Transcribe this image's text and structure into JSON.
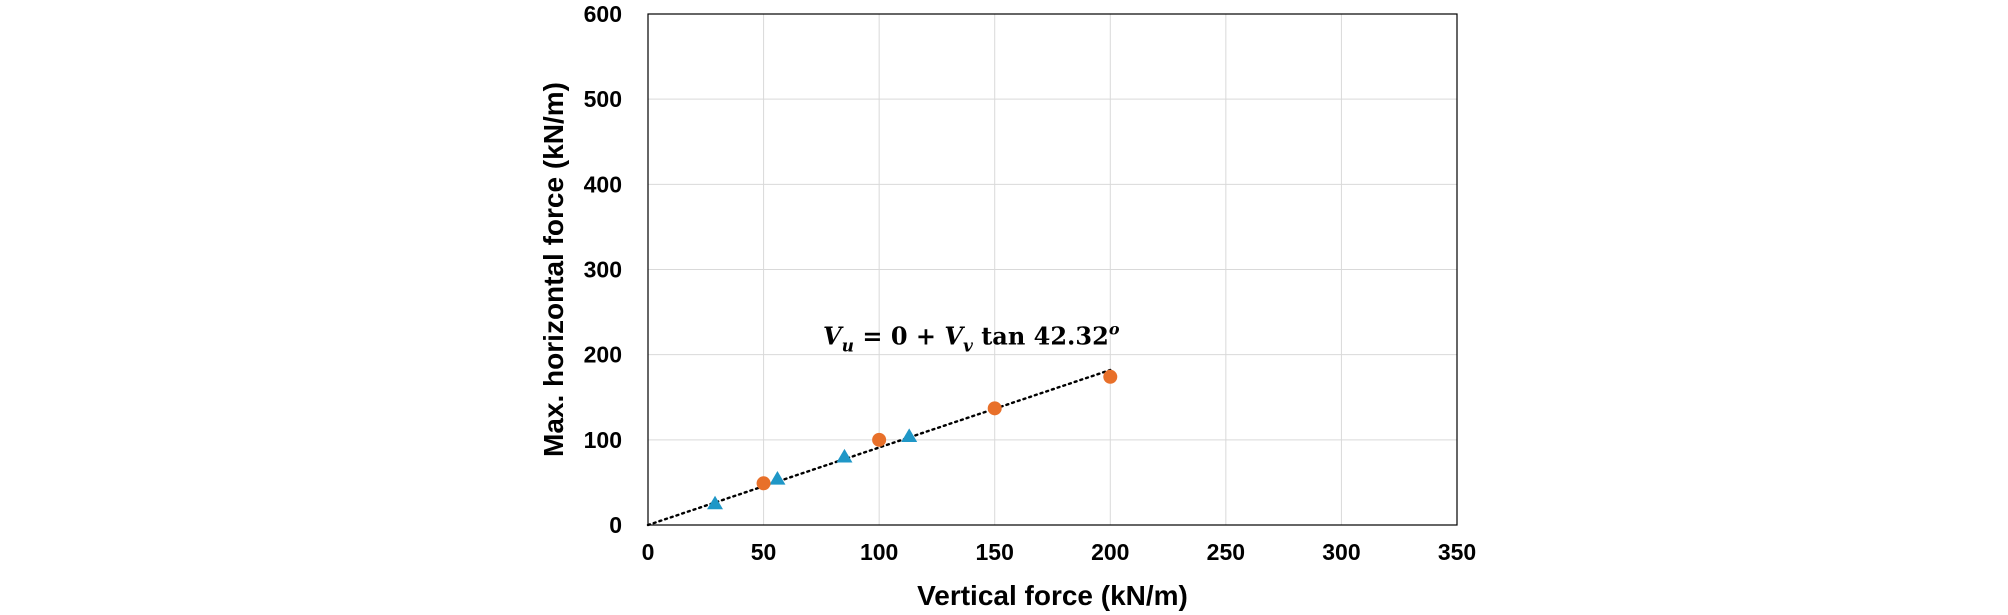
{
  "chart_data": {
    "type": "scatter",
    "xlabel": "Vertical force (kN/m)",
    "ylabel": "Max. horizontal force (kN/m)",
    "xlim": [
      0,
      350
    ],
    "ylim": [
      0,
      600
    ],
    "xticks": [
      0,
      50,
      100,
      150,
      200,
      250,
      300,
      350
    ],
    "yticks": [
      0,
      100,
      200,
      300,
      400,
      500,
      600
    ],
    "grid": true,
    "series": [
      {
        "marker": "triangle",
        "color": "#1f97c7",
        "points": [
          [
            29,
            25
          ],
          [
            56,
            54
          ],
          [
            85,
            80
          ],
          [
            113,
            104
          ]
        ]
      },
      {
        "marker": "circle",
        "color": "#e8702a",
        "points": [
          [
            50,
            49
          ],
          [
            100,
            100
          ],
          [
            150,
            137
          ],
          [
            200,
            174
          ]
        ]
      }
    ],
    "trendline": {
      "style": "dotted",
      "color": "#000000",
      "x": [
        0,
        200
      ],
      "y": [
        0,
        182
      ]
    },
    "annotations": [
      {
        "text": "V_u = 0 + V_v tan 42.32^o",
        "x": 100,
        "y": 218
      }
    ]
  }
}
